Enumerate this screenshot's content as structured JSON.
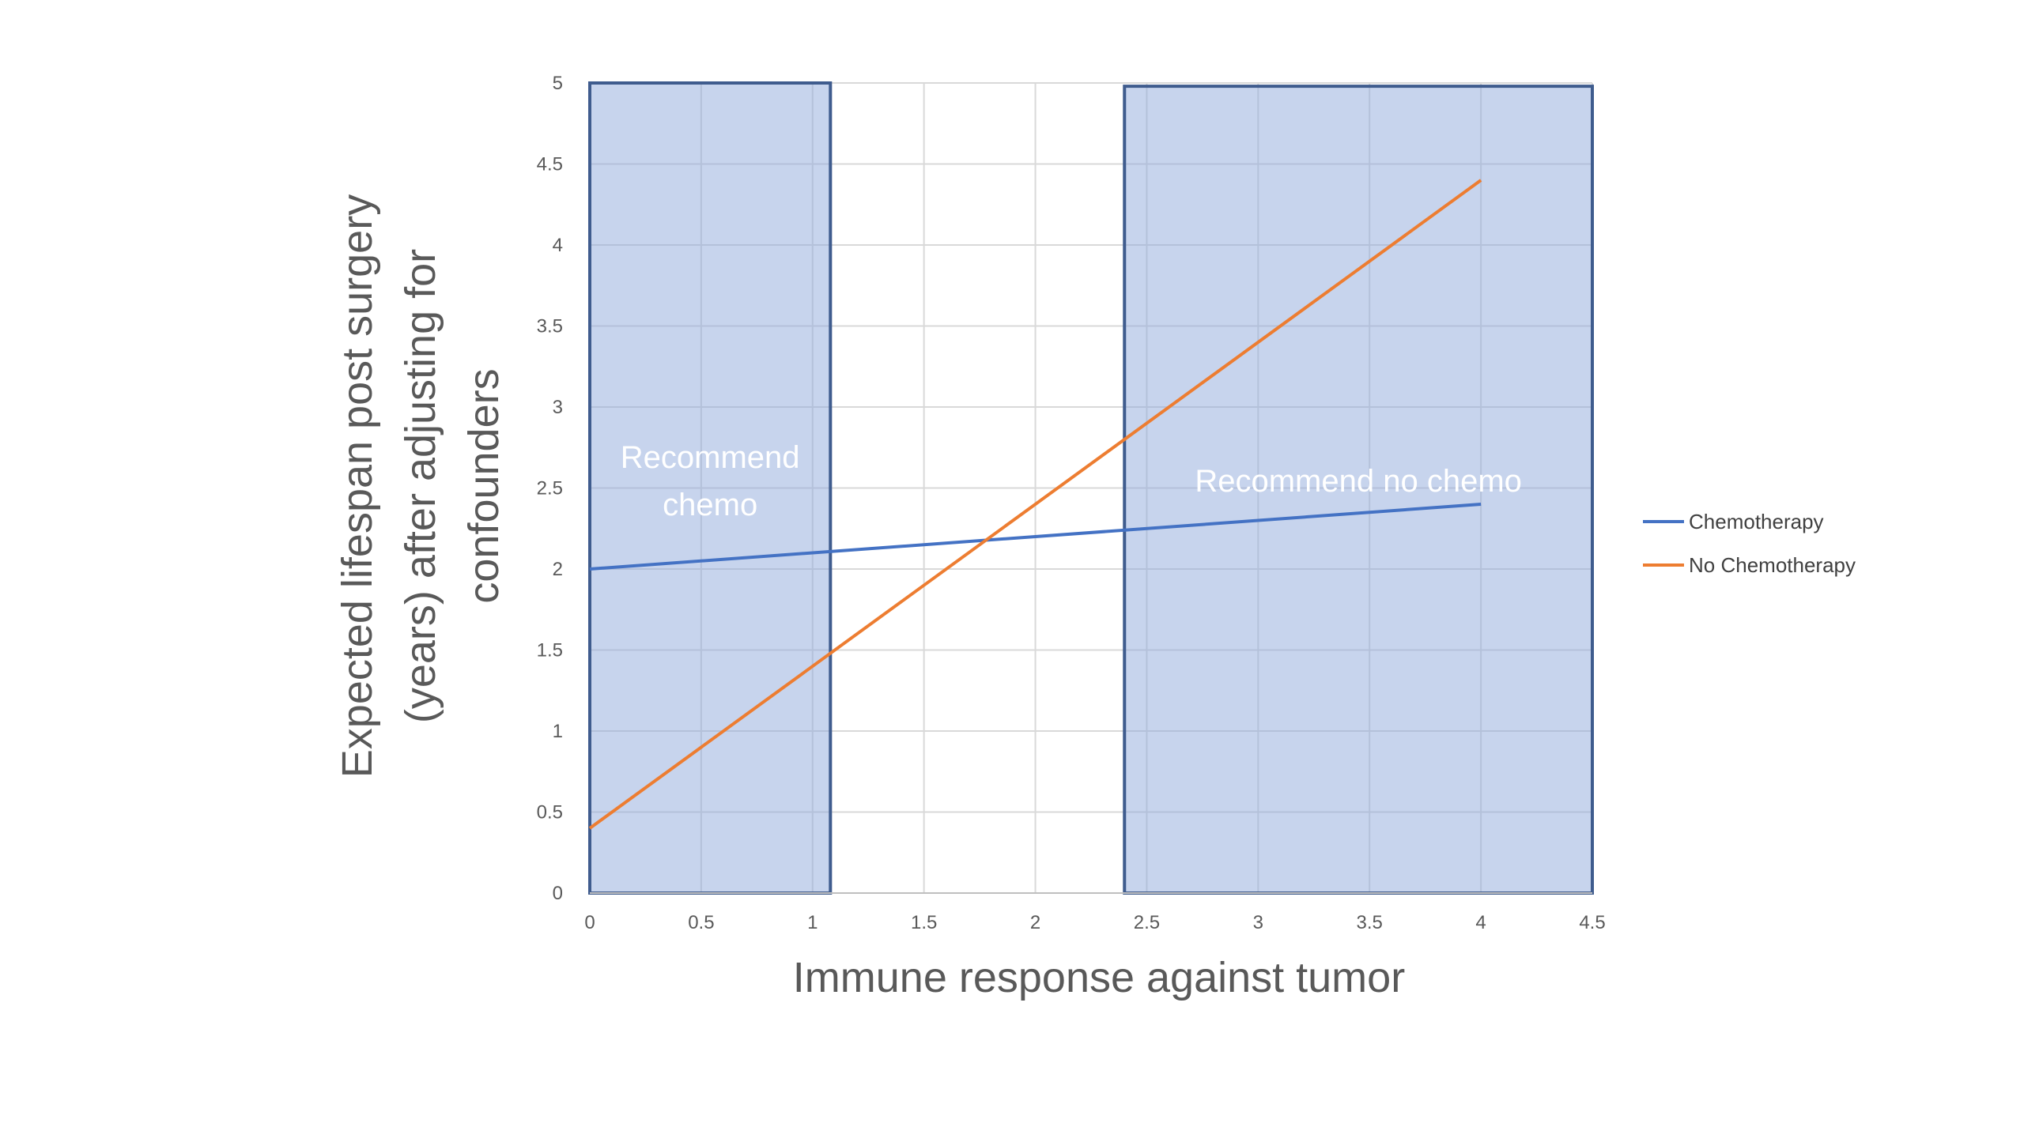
{
  "chart_data": {
    "type": "line",
    "title": "",
    "xlabel": "Immune response against tumor",
    "ylabel_lines": [
      "Expected lifespan post surgery",
      "(years) after adjusting for",
      "confounders"
    ],
    "xlim": [
      0,
      4.5
    ],
    "ylim": [
      0,
      5
    ],
    "x_ticks": [
      "0",
      "0.5",
      "1",
      "1.5",
      "2",
      "2.5",
      "3",
      "3.5",
      "4",
      "4.5"
    ],
    "y_ticks": [
      "0",
      "0.5",
      "1",
      "1.5",
      "2",
      "2.5",
      "3",
      "3.5",
      "4",
      "4.5",
      "5"
    ],
    "grid": true,
    "legend_position": "right",
    "series": [
      {
        "name": "Chemotherapy",
        "color": "#4472C4",
        "x": [
          0,
          4
        ],
        "y": [
          2.0,
          2.4
        ]
      },
      {
        "name": "No Chemotherapy",
        "color": "#ED7D31",
        "x": [
          0,
          4
        ],
        "y": [
          0.4,
          4.4
        ]
      }
    ],
    "regions": [
      {
        "label_lines": [
          "Recommend",
          "chemo"
        ],
        "x_range": [
          0,
          1.08
        ],
        "y_range": [
          0,
          5
        ],
        "color": "#8FAADC"
      },
      {
        "label_lines": [
          "Recommend no chemo"
        ],
        "x_range": [
          2.4,
          4.5
        ],
        "y_range": [
          0,
          4.98
        ],
        "color": "#8FAADC"
      }
    ]
  }
}
